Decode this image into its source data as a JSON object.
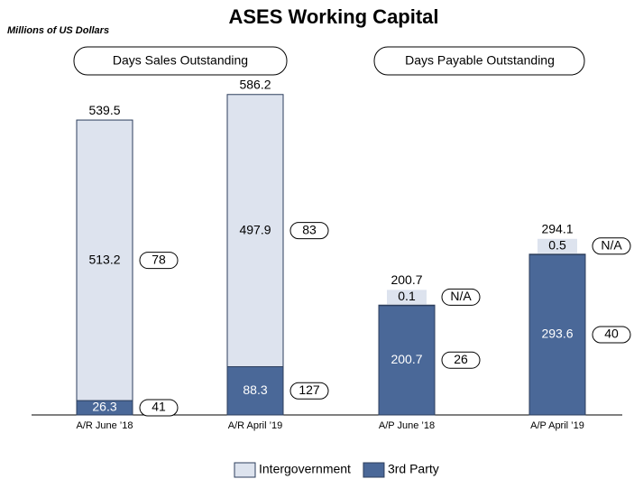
{
  "chart_data": {
    "type": "stacked-bar",
    "title": "ASES Working Capital",
    "subtitle": "Millions of US Dollars",
    "groups": [
      "Days Sales Outstanding",
      "Days Payable Outstanding"
    ],
    "categories": [
      "A/R June ’18",
      "A/R April ’19",
      "A/P June ’18",
      "A/P April ’19"
    ],
    "series": [
      {
        "name": "Intergovernment",
        "color": "#dde3ee",
        "values": [
          513.2,
          497.9,
          0.1,
          0.5
        ],
        "day_labels": [
          78,
          83,
          "N/A",
          "N/A"
        ]
      },
      {
        "name": "3rd Party",
        "color": "#4a6898",
        "values": [
          26.3,
          88.3,
          200.7,
          293.6
        ],
        "day_labels": [
          41,
          127,
          26,
          40
        ]
      }
    ],
    "totals": [
      539.5,
      586.2,
      200.7,
      294.1
    ],
    "ylim": [
      0,
      600
    ],
    "legend": "bottom"
  }
}
